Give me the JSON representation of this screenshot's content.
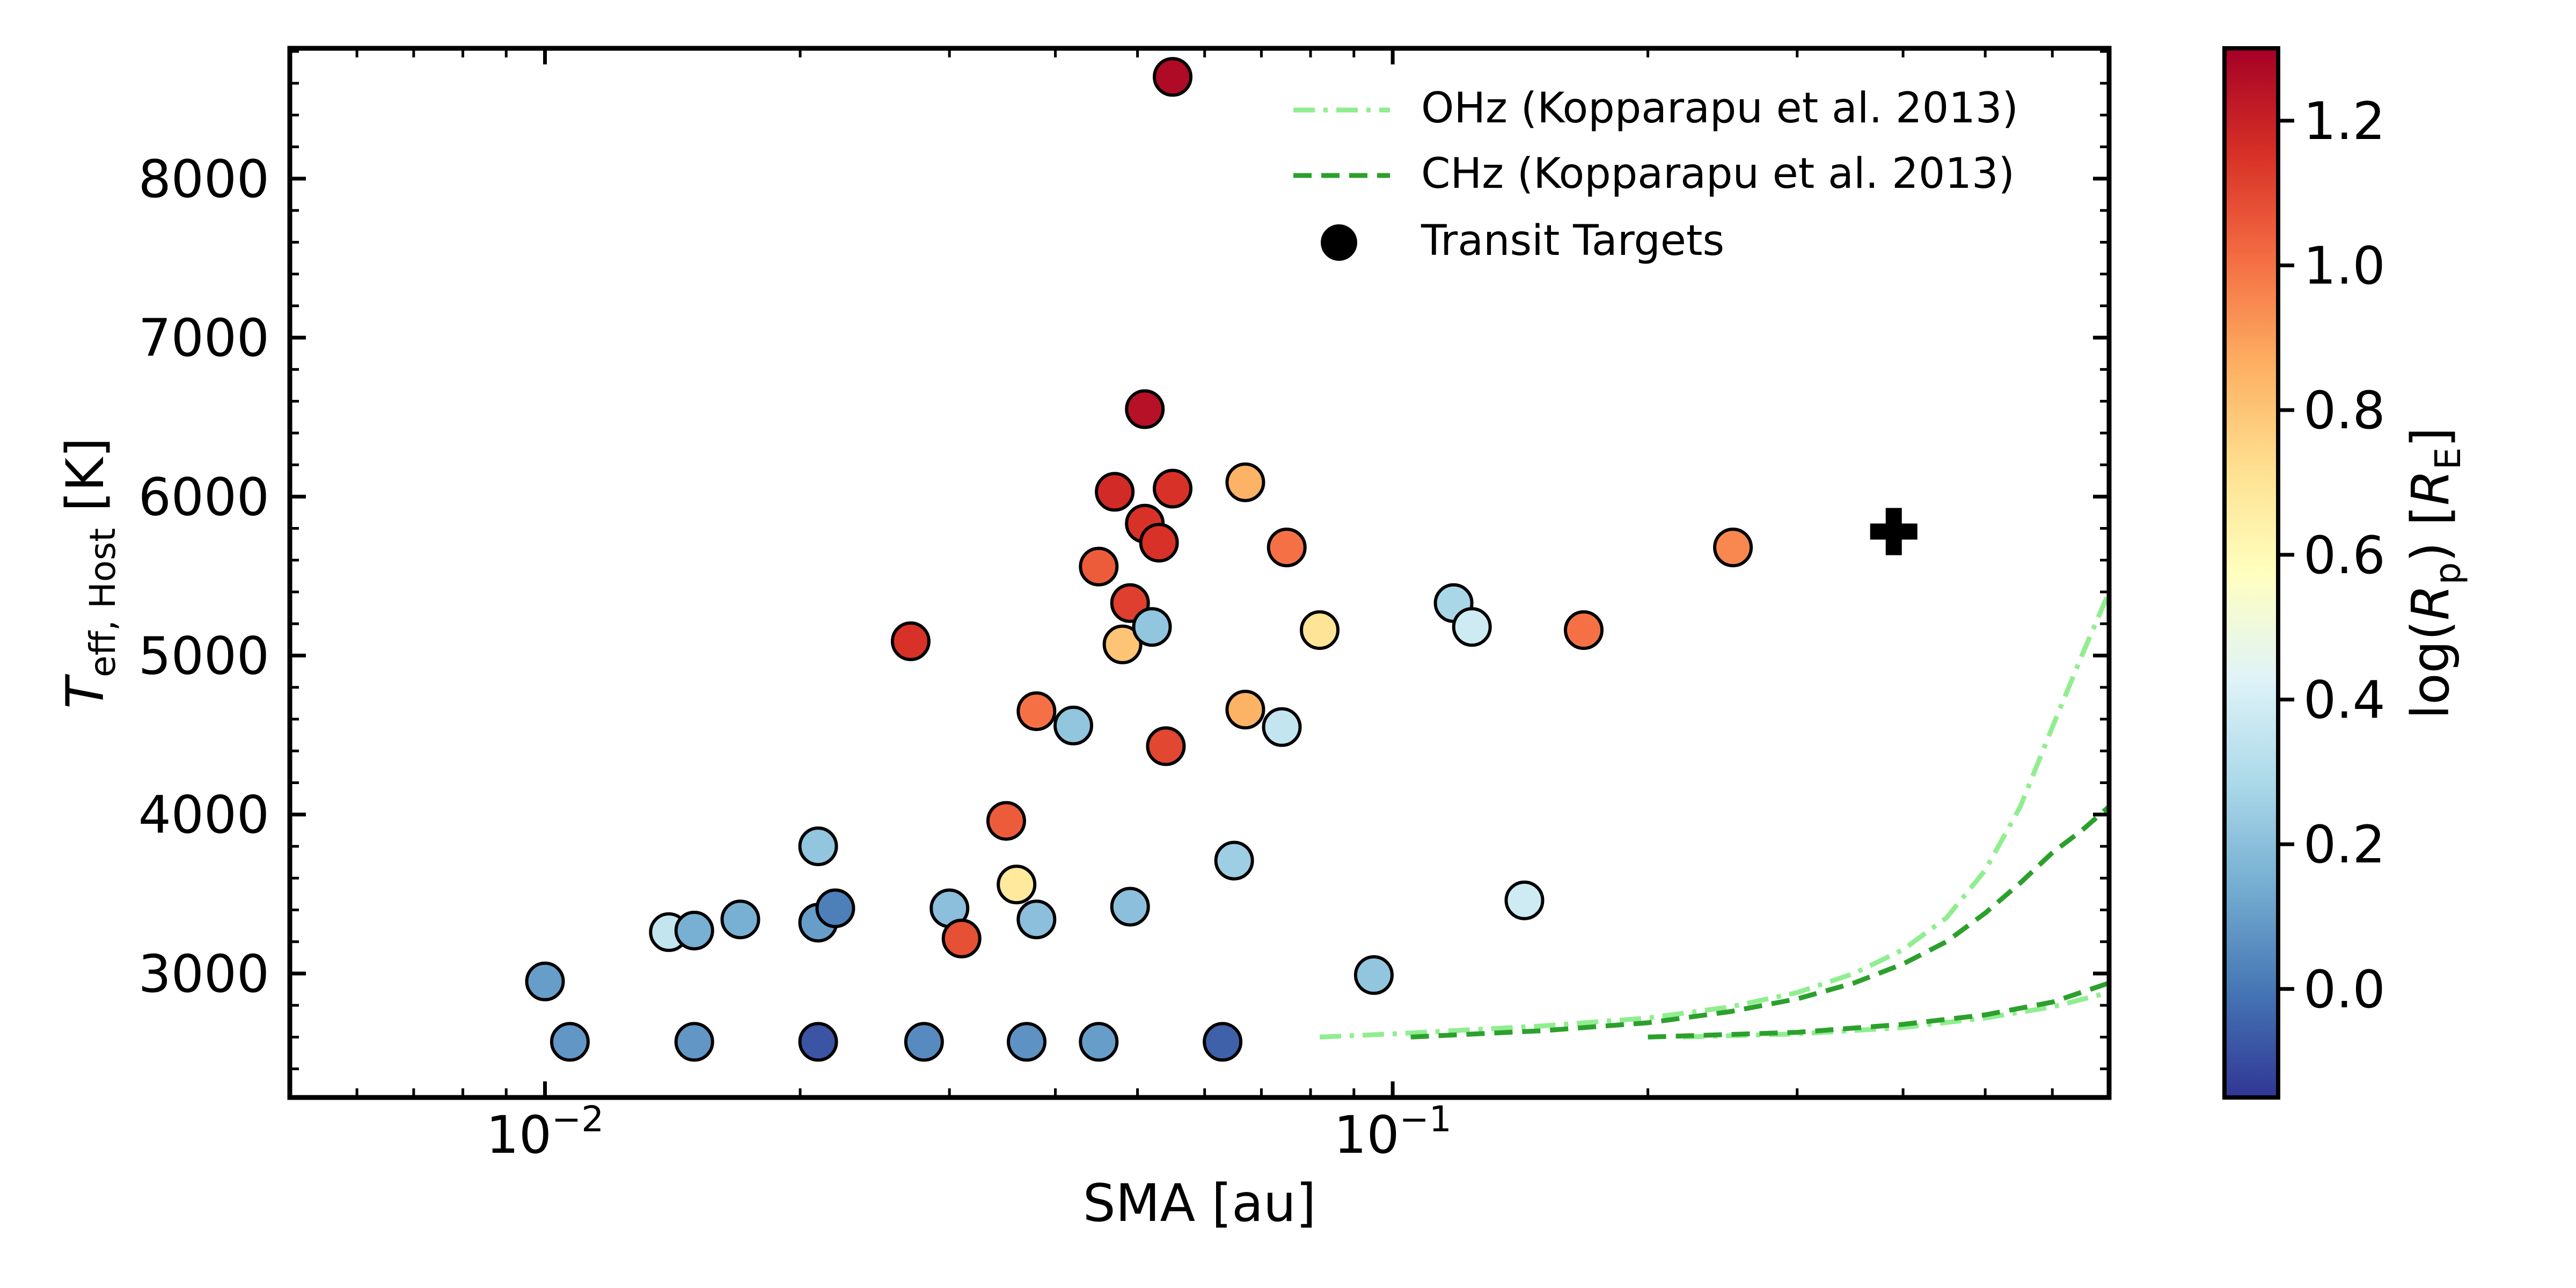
{
  "chart_data": {
    "type": "scatter",
    "xlabel": "SMA [au]",
    "ylabel_main": "T",
    "ylabel_sub": "eff, Host",
    "ylabel_tail": " [K]",
    "xscale": "log",
    "xlim": [
      0.005,
      0.7
    ],
    "ylim": [
      2220,
      8820
    ],
    "xticks": [
      {
        "value": 0.01,
        "base": "10",
        "exp": "−2"
      },
      {
        "value": 0.1,
        "base": "10",
        "exp": "−1"
      }
    ],
    "yticks": [
      3000,
      4000,
      5000,
      6000,
      7000,
      8000
    ],
    "colorbar": {
      "label_pre": "log(",
      "label_R": "R",
      "label_p": "p",
      "label_mid": ") [",
      "label_E_R": "R",
      "label_E": "E",
      "label_post": "]",
      "range": [
        -0.15,
        1.3
      ],
      "ticks": [
        "0.0",
        "0.2",
        "0.4",
        "0.6",
        "0.8",
        "1.0",
        "1.2"
      ],
      "tick_values": [
        0.0,
        0.2,
        0.4,
        0.6,
        0.8,
        1.0,
        1.2
      ],
      "colormap": [
        "#313695",
        "#4575b4",
        "#74add1",
        "#abd9e9",
        "#e0f3f8",
        "#ffffbf",
        "#fee090",
        "#fdae61",
        "#f46d43",
        "#d73027",
        "#a50026"
      ]
    },
    "legend": {
      "placement": "top-right",
      "entries": [
        {
          "label": "OHz (Kopparapu et al. 2013)",
          "style": "dashdot",
          "color": "#90ee90"
        },
        {
          "label": "CHz (Kopparapu et al. 2013)",
          "style": "dashed",
          "color": "#2ca02c"
        },
        {
          "label": "Transit Targets",
          "style": "marker",
          "color": "#000000"
        }
      ]
    },
    "habitable_zones": [
      {
        "name": "OHz",
        "style": "dashdot",
        "color": "#90ee90",
        "points": [
          [
            0.082,
            2600
          ],
          [
            0.1,
            2620
          ],
          [
            0.15,
            2670
          ],
          [
            0.2,
            2720
          ],
          [
            0.25,
            2790
          ],
          [
            0.3,
            2880
          ],
          [
            0.35,
            3000
          ],
          [
            0.4,
            3150
          ],
          [
            0.45,
            3350
          ],
          [
            0.5,
            3650
          ],
          [
            0.55,
            4050
          ],
          [
            0.6,
            4550
          ],
          [
            0.65,
            5000
          ],
          [
            0.7,
            5400
          ]
        ]
      },
      {
        "name": "OHz",
        "style": "dashdot",
        "color": "#90ee90",
        "points": [
          [
            0.22,
            2600
          ],
          [
            0.3,
            2620
          ],
          [
            0.4,
            2660
          ],
          [
            0.5,
            2720
          ],
          [
            0.6,
            2790
          ],
          [
            0.7,
            2880
          ]
        ]
      },
      {
        "name": "CHz",
        "style": "dashed",
        "color": "#2ca02c",
        "points": [
          [
            0.105,
            2600
          ],
          [
            0.15,
            2640
          ],
          [
            0.2,
            2690
          ],
          [
            0.25,
            2760
          ],
          [
            0.3,
            2840
          ],
          [
            0.35,
            2940
          ],
          [
            0.4,
            3060
          ],
          [
            0.45,
            3200
          ],
          [
            0.5,
            3380
          ],
          [
            0.55,
            3570
          ],
          [
            0.6,
            3760
          ],
          [
            0.65,
            3900
          ],
          [
            0.7,
            4050
          ]
        ]
      },
      {
        "name": "CHz",
        "style": "dashed",
        "color": "#2ca02c",
        "points": [
          [
            0.2,
            2600
          ],
          [
            0.3,
            2630
          ],
          [
            0.4,
            2680
          ],
          [
            0.5,
            2740
          ],
          [
            0.6,
            2820
          ],
          [
            0.7,
            2940
          ]
        ]
      }
    ],
    "earth_marker": {
      "x": 0.39,
      "y": 5780,
      "symbol": "plus"
    },
    "points": [
      {
        "x": 0.01,
        "y": 2950,
        "c": 0.1
      },
      {
        "x": 0.0107,
        "y": 2570,
        "c": 0.08
      },
      {
        "x": 0.014,
        "y": 3260,
        "c": 0.35
      },
      {
        "x": 0.015,
        "y": 3270,
        "c": 0.15
      },
      {
        "x": 0.015,
        "y": 2570,
        "c": 0.08
      },
      {
        "x": 0.017,
        "y": 3340,
        "c": 0.15
      },
      {
        "x": 0.021,
        "y": 3320,
        "c": 0.1
      },
      {
        "x": 0.021,
        "y": 3800,
        "c": 0.22
      },
      {
        "x": 0.021,
        "y": 2570,
        "c": -0.08
      },
      {
        "x": 0.022,
        "y": 3410,
        "c": 0.02
      },
      {
        "x": 0.027,
        "y": 5090,
        "c": 1.15
      },
      {
        "x": 0.028,
        "y": 2570,
        "c": 0.05
      },
      {
        "x": 0.03,
        "y": 3410,
        "c": 0.2
      },
      {
        "x": 0.031,
        "y": 3220,
        "c": 1.08
      },
      {
        "x": 0.035,
        "y": 3960,
        "c": 1.05
      },
      {
        "x": 0.036,
        "y": 3560,
        "c": 0.68
      },
      {
        "x": 0.037,
        "y": 2570,
        "c": 0.07
      },
      {
        "x": 0.038,
        "y": 3340,
        "c": 0.2
      },
      {
        "x": 0.038,
        "y": 4650,
        "c": 1.0
      },
      {
        "x": 0.042,
        "y": 4560,
        "c": 0.22
      },
      {
        "x": 0.045,
        "y": 2570,
        "c": 0.1
      },
      {
        "x": 0.045,
        "y": 5560,
        "c": 1.05
      },
      {
        "x": 0.047,
        "y": 6030,
        "c": 1.17
      },
      {
        "x": 0.048,
        "y": 5070,
        "c": 0.8
      },
      {
        "x": 0.049,
        "y": 5330,
        "c": 1.12
      },
      {
        "x": 0.049,
        "y": 3420,
        "c": 0.2
      },
      {
        "x": 0.051,
        "y": 6550,
        "c": 1.25
      },
      {
        "x": 0.051,
        "y": 5830,
        "c": 1.15
      },
      {
        "x": 0.052,
        "y": 5180,
        "c": 0.22
      },
      {
        "x": 0.053,
        "y": 5710,
        "c": 1.15
      },
      {
        "x": 0.054,
        "y": 4430,
        "c": 1.1
      },
      {
        "x": 0.055,
        "y": 6050,
        "c": 1.15
      },
      {
        "x": 0.055,
        "y": 8640,
        "c": 1.27
      },
      {
        "x": 0.063,
        "y": 2570,
        "c": -0.05
      },
      {
        "x": 0.065,
        "y": 3710,
        "c": 0.25
      },
      {
        "x": 0.067,
        "y": 6090,
        "c": 0.85
      },
      {
        "x": 0.067,
        "y": 4660,
        "c": 0.85
      },
      {
        "x": 0.074,
        "y": 4550,
        "c": 0.35
      },
      {
        "x": 0.075,
        "y": 5680,
        "c": 1.0
      },
      {
        "x": 0.082,
        "y": 5160,
        "c": 0.7
      },
      {
        "x": 0.095,
        "y": 2990,
        "c": 0.22
      },
      {
        "x": 0.118,
        "y": 5330,
        "c": 0.28
      },
      {
        "x": 0.124,
        "y": 5180,
        "c": 0.38
      },
      {
        "x": 0.143,
        "y": 3460,
        "c": 0.38
      },
      {
        "x": 0.168,
        "y": 5160,
        "c": 1.0
      },
      {
        "x": 0.252,
        "y": 5680,
        "c": 0.95
      }
    ]
  }
}
